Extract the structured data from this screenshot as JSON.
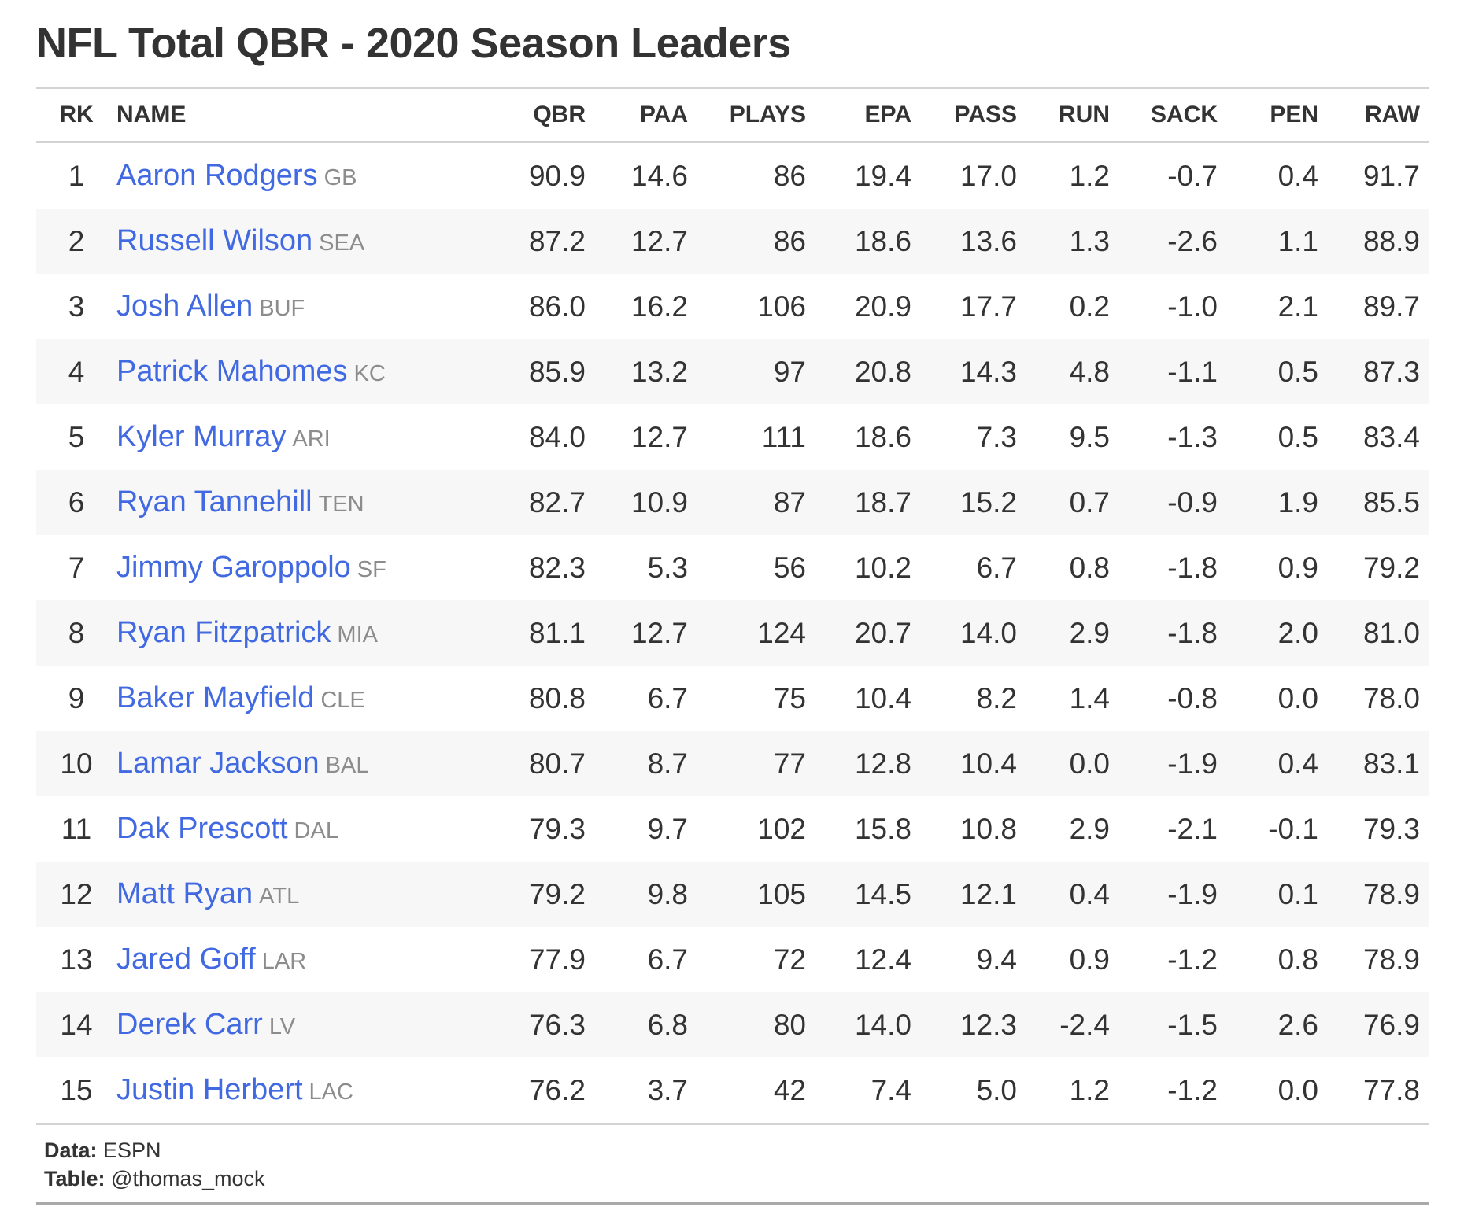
{
  "title": "NFL Total QBR - 2020 Season Leaders",
  "colors": {
    "player_link": "#4169e1",
    "team_abbr": "#8c8c8c",
    "text": "#333333",
    "stripe": "#f7f7f7",
    "rule": "#d3d3d3"
  },
  "columns": [
    "RK",
    "NAME",
    "QBR",
    "PAA",
    "PLAYS",
    "EPA",
    "PASS",
    "RUN",
    "SACK",
    "PEN",
    "RAW"
  ],
  "rows": [
    {
      "rk": "1",
      "name": "Aaron Rodgers",
      "team": "GB",
      "qbr": "90.9",
      "paa": "14.6",
      "plays": "86",
      "epa": "19.4",
      "pass": "17.0",
      "run": "1.2",
      "sack": "-0.7",
      "pen": "0.4",
      "raw": "91.7"
    },
    {
      "rk": "2",
      "name": "Russell Wilson",
      "team": "SEA",
      "qbr": "87.2",
      "paa": "12.7",
      "plays": "86",
      "epa": "18.6",
      "pass": "13.6",
      "run": "1.3",
      "sack": "-2.6",
      "pen": "1.1",
      "raw": "88.9"
    },
    {
      "rk": "3",
      "name": "Josh Allen",
      "team": "BUF",
      "qbr": "86.0",
      "paa": "16.2",
      "plays": "106",
      "epa": "20.9",
      "pass": "17.7",
      "run": "0.2",
      "sack": "-1.0",
      "pen": "2.1",
      "raw": "89.7"
    },
    {
      "rk": "4",
      "name": "Patrick Mahomes",
      "team": "KC",
      "qbr": "85.9",
      "paa": "13.2",
      "plays": "97",
      "epa": "20.8",
      "pass": "14.3",
      "run": "4.8",
      "sack": "-1.1",
      "pen": "0.5",
      "raw": "87.3"
    },
    {
      "rk": "5",
      "name": "Kyler Murray",
      "team": "ARI",
      "qbr": "84.0",
      "paa": "12.7",
      "plays": "111",
      "epa": "18.6",
      "pass": "7.3",
      "run": "9.5",
      "sack": "-1.3",
      "pen": "0.5",
      "raw": "83.4"
    },
    {
      "rk": "6",
      "name": "Ryan Tannehill",
      "team": "TEN",
      "qbr": "82.7",
      "paa": "10.9",
      "plays": "87",
      "epa": "18.7",
      "pass": "15.2",
      "run": "0.7",
      "sack": "-0.9",
      "pen": "1.9",
      "raw": "85.5"
    },
    {
      "rk": "7",
      "name": "Jimmy Garoppolo",
      "team": "SF",
      "qbr": "82.3",
      "paa": "5.3",
      "plays": "56",
      "epa": "10.2",
      "pass": "6.7",
      "run": "0.8",
      "sack": "-1.8",
      "pen": "0.9",
      "raw": "79.2"
    },
    {
      "rk": "8",
      "name": "Ryan Fitzpatrick",
      "team": "MIA",
      "qbr": "81.1",
      "paa": "12.7",
      "plays": "124",
      "epa": "20.7",
      "pass": "14.0",
      "run": "2.9",
      "sack": "-1.8",
      "pen": "2.0",
      "raw": "81.0"
    },
    {
      "rk": "9",
      "name": "Baker Mayfield",
      "team": "CLE",
      "qbr": "80.8",
      "paa": "6.7",
      "plays": "75",
      "epa": "10.4",
      "pass": "8.2",
      "run": "1.4",
      "sack": "-0.8",
      "pen": "0.0",
      "raw": "78.0"
    },
    {
      "rk": "10",
      "name": "Lamar Jackson",
      "team": "BAL",
      "qbr": "80.7",
      "paa": "8.7",
      "plays": "77",
      "epa": "12.8",
      "pass": "10.4",
      "run": "0.0",
      "sack": "-1.9",
      "pen": "0.4",
      "raw": "83.1"
    },
    {
      "rk": "11",
      "name": "Dak Prescott",
      "team": "DAL",
      "qbr": "79.3",
      "paa": "9.7",
      "plays": "102",
      "epa": "15.8",
      "pass": "10.8",
      "run": "2.9",
      "sack": "-2.1",
      "pen": "-0.1",
      "raw": "79.3"
    },
    {
      "rk": "12",
      "name": "Matt Ryan",
      "team": "ATL",
      "qbr": "79.2",
      "paa": "9.8",
      "plays": "105",
      "epa": "14.5",
      "pass": "12.1",
      "run": "0.4",
      "sack": "-1.9",
      "pen": "0.1",
      "raw": "78.9"
    },
    {
      "rk": "13",
      "name": "Jared Goff",
      "team": "LAR",
      "qbr": "77.9",
      "paa": "6.7",
      "plays": "72",
      "epa": "12.4",
      "pass": "9.4",
      "run": "0.9",
      "sack": "-1.2",
      "pen": "0.8",
      "raw": "78.9"
    },
    {
      "rk": "14",
      "name": "Derek Carr",
      "team": "LV",
      "qbr": "76.3",
      "paa": "6.8",
      "plays": "80",
      "epa": "14.0",
      "pass": "12.3",
      "run": "-2.4",
      "sack": "-1.5",
      "pen": "2.6",
      "raw": "76.9"
    },
    {
      "rk": "15",
      "name": "Justin Herbert",
      "team": "LAC",
      "qbr": "76.2",
      "paa": "3.7",
      "plays": "42",
      "epa": "7.4",
      "pass": "5.0",
      "run": "1.2",
      "sack": "-1.2",
      "pen": "0.0",
      "raw": "77.8"
    }
  ],
  "footer": {
    "data_label": "Data:",
    "data_value": "ESPN",
    "table_label": "Table:",
    "table_value": "@thomas_mock"
  }
}
